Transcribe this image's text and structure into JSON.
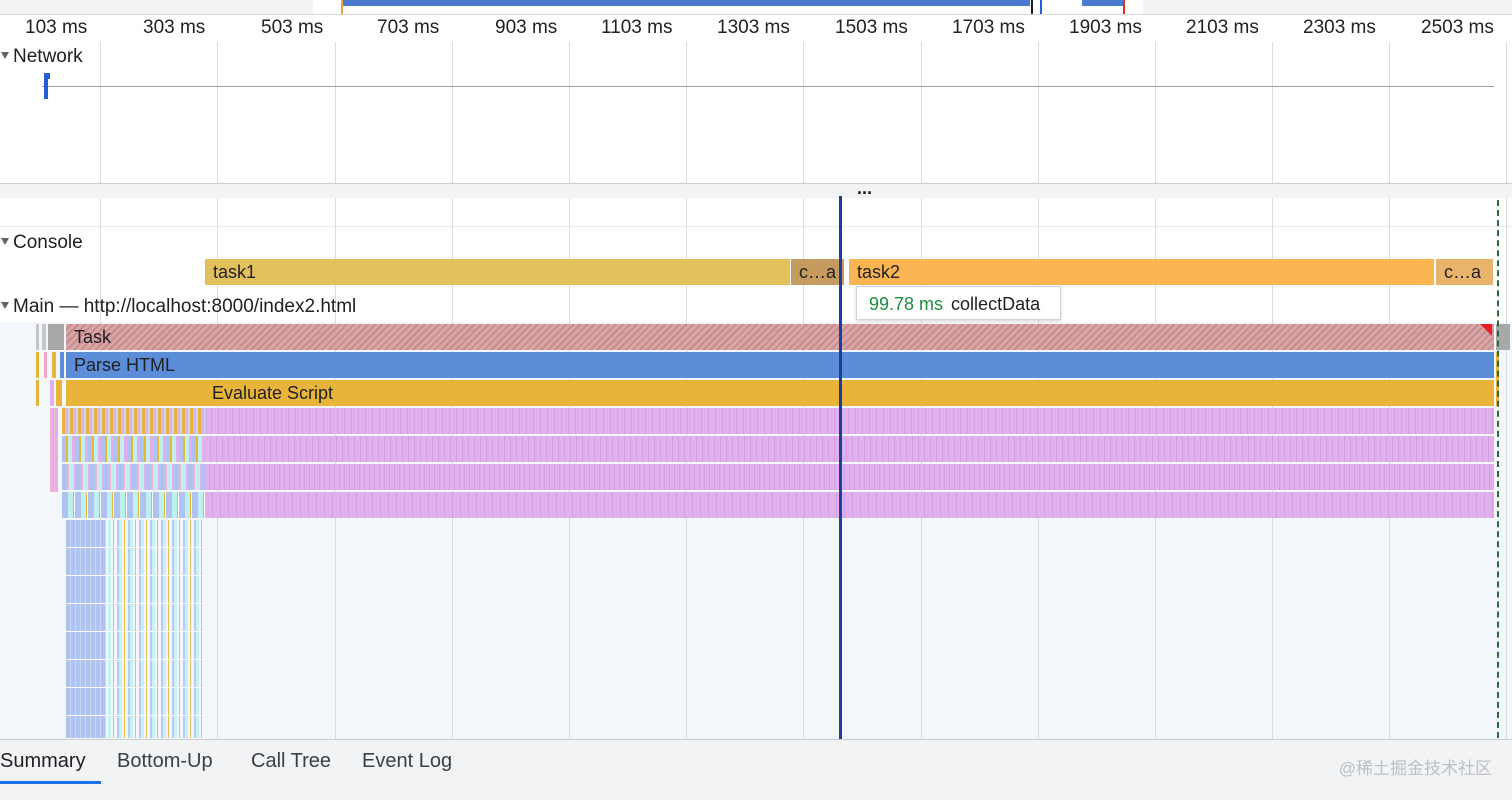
{
  "ruler": {
    "ticks": [
      "103 ms",
      "303 ms",
      "503 ms",
      "703 ms",
      "903 ms",
      "1103 ms",
      "1303 ms",
      "1503 ms",
      "1703 ms",
      "1903 ms",
      "2103 ms",
      "2303 ms",
      "2503 ms"
    ]
  },
  "tracks": {
    "network": "Network",
    "console": "Console",
    "main": "Main — http://localhost:8000/index2.html"
  },
  "splitter": {
    "label": "..."
  },
  "console": {
    "task1": "task1",
    "collect1": "c…a",
    "task2": "task2",
    "collect2": "c…a"
  },
  "main": {
    "task": "Task",
    "parse_html": "Parse HTML",
    "evaluate_script": "Evaluate Script"
  },
  "tooltip": {
    "duration": "99.78 ms",
    "name": "collectData"
  },
  "tabs": [
    "Summary",
    "Bottom-Up",
    "Call Tree",
    "Event Log"
  ],
  "watermark": "@稀土掘金技术社区",
  "colors": {
    "scripting_yellow": "#e8b43a",
    "console_task1": "#e2c05b",
    "console_task2": "#fbb454",
    "console_collect": "#c49a5f",
    "parse_html_blue": "#5b8dd9",
    "function_purple": "#e0b0ec",
    "cursor_blue": "#1a3ea0",
    "tab_active_blue": "#1a73e8"
  }
}
